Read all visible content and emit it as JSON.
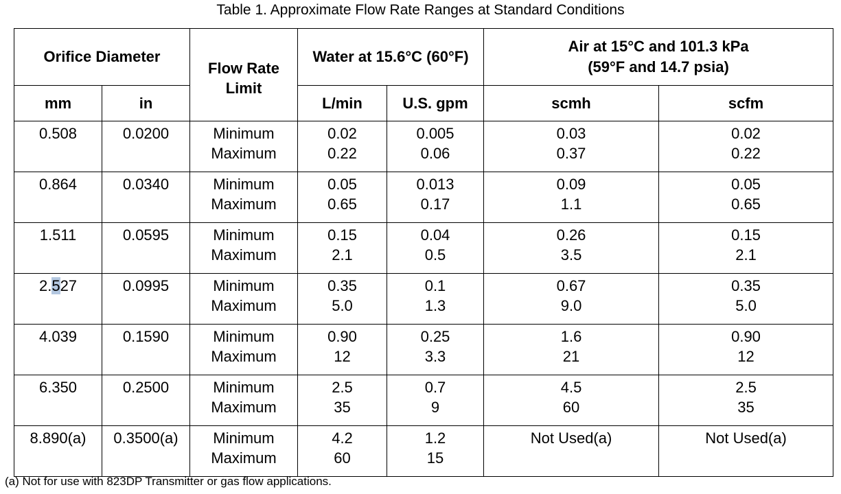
{
  "caption": "Table 1.  Approximate Flow Rate Ranges at Standard Conditions",
  "headers": {
    "orifice_diameter": "Orifice Diameter",
    "flow_rate_limit": "Flow Rate Limit",
    "water": "Water at 15.6°C (60°F)",
    "air_line1": "Air at 15°C and 101.3 kPa",
    "air_line2": "(59°F and 14.7 psia)",
    "mm": "mm",
    "in": "in",
    "lmin": "L/min",
    "gpm": "U.S. gpm",
    "scmh": "scmh",
    "scfm": "scfm"
  },
  "rows": [
    {
      "mm": "0.508",
      "in": "0.0200",
      "min": "Minimum",
      "max": "Maximum",
      "lmin_min": "0.02",
      "lmin_max": "0.22",
      "gpm_min": "0.005",
      "gpm_max": "0.06",
      "scmh_min": "0.03",
      "scmh_max": "0.37",
      "scfm_min": "0.02",
      "scfm_max": "0.22"
    },
    {
      "mm": "0.864",
      "in": "0.0340",
      "min": "Minimum",
      "max": "Maximum",
      "lmin_min": "0.05",
      "lmin_max": "0.65",
      "gpm_min": "0.013",
      "gpm_max": "0.17",
      "scmh_min": "0.09",
      "scmh_max": "1.1",
      "scfm_min": "0.05",
      "scfm_max": "0.65"
    },
    {
      "mm": "1.511",
      "in": "0.0595",
      "min": "Minimum",
      "max": "Maximum",
      "lmin_min": "0.15",
      "lmin_max": "2.1",
      "gpm_min": "0.04",
      "gpm_max": "0.5",
      "scmh_min": "0.26",
      "scmh_max": "3.5",
      "scfm_min": "0.15",
      "scfm_max": "2.1"
    },
    {
      "mm_a": "2.",
      "mm_sel": "5",
      "mm_b": "27",
      "in": "0.0995",
      "min": "Minimum",
      "max": "Maximum",
      "lmin_min": "0.35",
      "lmin_max": "5.0",
      "gpm_min": "0.1",
      "gpm_max": "1.3",
      "scmh_min": "0.67",
      "scmh_max": "9.0",
      "scfm_min": "0.35",
      "scfm_max": "5.0"
    },
    {
      "mm": "4.039",
      "in": "0.1590",
      "min": "Minimum",
      "max": "Maximum",
      "lmin_min": "0.90",
      "lmin_max": "12",
      "gpm_min": "0.25",
      "gpm_max": "3.3",
      "scmh_min": "1.6",
      "scmh_max": "21",
      "scfm_min": "0.90",
      "scfm_max": "12"
    },
    {
      "mm": "6.350",
      "in": "0.2500",
      "min": "Minimum",
      "max": "Maximum",
      "lmin_min": "2.5",
      "lmin_max": "35",
      "gpm_min": "0.7",
      "gpm_max": "9",
      "scmh_min": "4.5",
      "scmh_max": "60",
      "scfm_min": "2.5",
      "scfm_max": "35"
    },
    {
      "mm": "8.890(a)",
      "in": "0.3500(a)",
      "min": "Minimum",
      "max": "Maximum",
      "lmin_min": "4.2",
      "lmin_max": "60",
      "gpm_min": "1.2",
      "gpm_max": "15",
      "scmh": "Not Used(a)",
      "scfm": "Not Used(a)"
    }
  ],
  "footnote": "(a) Not for use with 823DP Transmitter or gas flow applications.",
  "colors": {
    "selection_highlight": "#b3c7e0"
  }
}
